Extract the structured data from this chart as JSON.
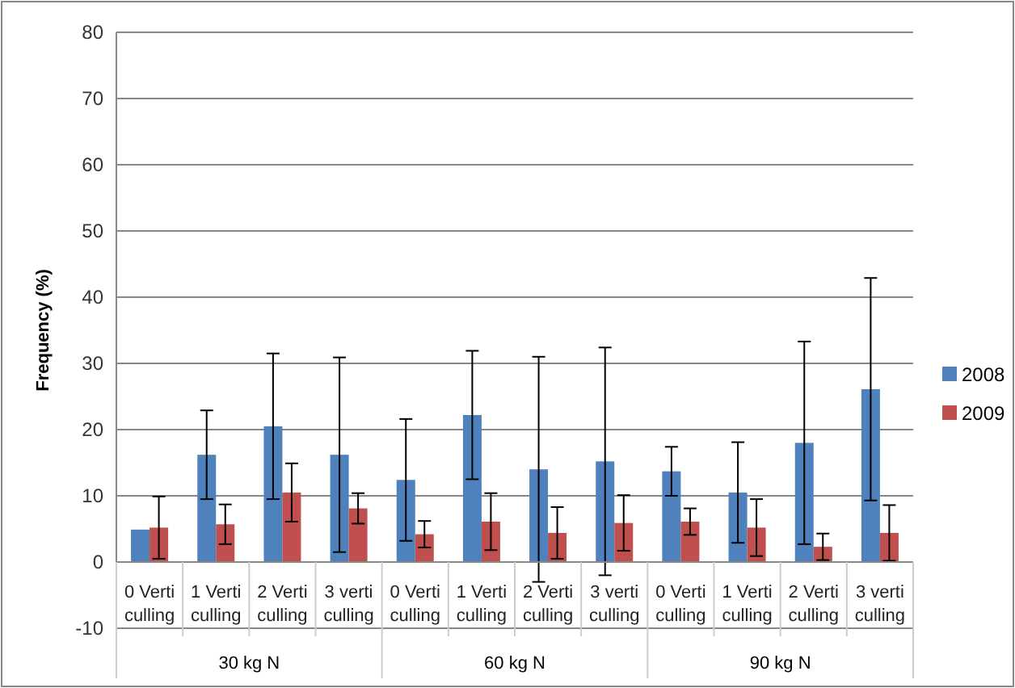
{
  "chart_data": {
    "type": "bar",
    "ylabel": "Frequency (%)",
    "categories": [
      "0 Verti culling",
      "1 Verti culling",
      "2 Verti culling",
      "3 verti culling",
      "0 Verti culling",
      "1 Verti culling",
      "2 Verti culling",
      "3 verti culling",
      "0 Verti culling",
      "1 Verti culling",
      "2 Verti culling",
      "3 verti culling"
    ],
    "series": [
      {
        "name": "2008",
        "color": "#4f81bd",
        "values": [
          4.9,
          16.2,
          20.5,
          16.2,
          12.4,
          22.2,
          14.0,
          15.2,
          13.7,
          10.5,
          18.0,
          26.1
        ],
        "errors": [
          null,
          6.7,
          11,
          14.7,
          9.2,
          9.7,
          17,
          17.2,
          3.7,
          7.6,
          15.3,
          16.8
        ]
      },
      {
        "name": "2009",
        "color": "#c0504d",
        "values": [
          5.2,
          5.7,
          10.5,
          8.1,
          4.2,
          6.1,
          4.4,
          5.9,
          6.1,
          5.2,
          2.3,
          4.4
        ],
        "errors": [
          4.7,
          3,
          4.4,
          2.3,
          2,
          4.3,
          3.9,
          4.2,
          2,
          4.3,
          2,
          4.2
        ]
      }
    ],
    "annotations": [
      "30 kg N",
      "60 kg N",
      "90 kg N"
    ],
    "ylim": [
      -10,
      80
    ],
    "yticks": [
      -10,
      0,
      10,
      20,
      30,
      40,
      50,
      60,
      70,
      80
    ],
    "grid": "y",
    "legend": "right"
  }
}
